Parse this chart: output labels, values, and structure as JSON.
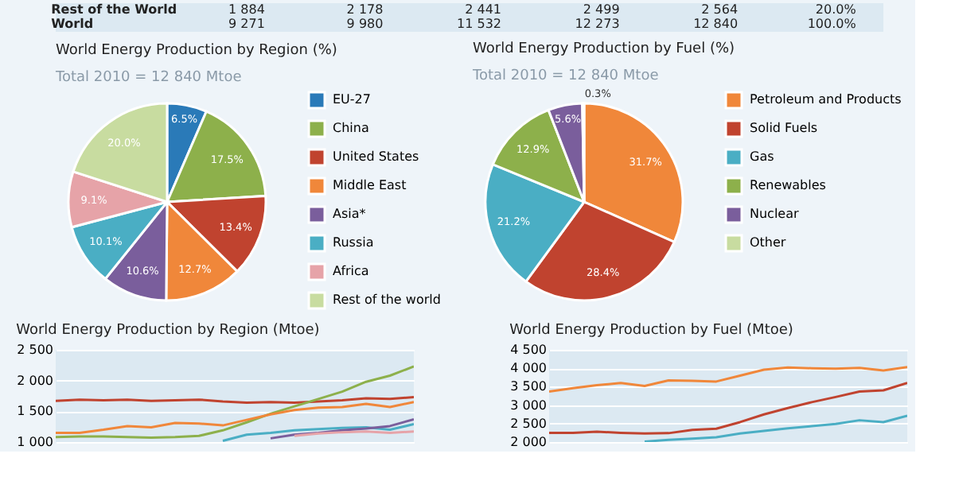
{
  "chart_data": [
    {
      "type": "other",
      "annotations": [
        "Rest of the World",
        "1 884",
        "2 178",
        "2 441",
        "2 499",
        "2 564",
        "20.0%",
        "World",
        "9 271",
        "9 980",
        "11 532",
        "12 273",
        "12 840",
        "100.0%"
      ]
    },
    {
      "type": "pie",
      "title": "World Energy Production by Region (%)",
      "subtitle": "Total 2010 = 12 840 Mtoe",
      "legend": "right",
      "categories": [
        "EU-27",
        "China",
        "United States",
        "Middle East",
        "Asia*",
        "Russia",
        "Africa",
        "Rest of the world"
      ],
      "values": [
        6.5,
        17.5,
        13.4,
        12.7,
        10.6,
        10.1,
        9.1,
        20.0
      ],
      "value_labels": [
        "6.5%",
        "17.5%",
        "13.4%",
        "12.7%",
        "10.6%",
        "10.1%",
        "9.1%",
        "20.0%"
      ],
      "colors": [
        "#2a7ab8",
        "#8db04b",
        "#c0432f",
        "#f0873a",
        "#7a5e9c",
        "#4aaec4",
        "#e6a3a8",
        "#c8dca0"
      ]
    },
    {
      "type": "pie",
      "title": "World Energy Production by Fuel (%)",
      "subtitle": "Total 2010 = 12 840 Mtoe",
      "legend": "right",
      "categories": [
        "Petroleum and Products",
        "Solid Fuels",
        "Gas",
        "Renewables",
        "Nuclear",
        "Other"
      ],
      "values": [
        31.7,
        28.4,
        21.2,
        12.9,
        5.6,
        0.3
      ],
      "value_labels": [
        "31.7%",
        "28.4%",
        "21.2%",
        "12.9%",
        "5.6%",
        "0.3%"
      ],
      "colors": [
        "#f0873a",
        "#c0432f",
        "#4aaec4",
        "#8db04b",
        "#7a5e9c",
        "#c8dca0"
      ]
    },
    {
      "type": "line",
      "title": "World Energy Production by Region (Mtoe)",
      "grid": "y",
      "tick_labels": "y",
      "legend": false,
      "categories": [
        null,
        null,
        null,
        null,
        null,
        null,
        null,
        null,
        null,
        null,
        null,
        null,
        null,
        null,
        null,
        null
      ],
      "ylim": [
        1000,
        2500
      ],
      "yticks": [
        {
          "value": 1000,
          "label": "1 000"
        },
        {
          "value": 1500,
          "label": "1 500"
        },
        {
          "value": 2000,
          "label": "2 000"
        },
        {
          "value": 2500,
          "label": "2 500"
        }
      ],
      "series": [
        {
          "color": "#c0432f",
          "values": [
            1670,
            1690,
            1680,
            1690,
            1670,
            1680,
            1690,
            1660,
            1640,
            1650,
            1640,
            1660,
            1680,
            1710,
            1700,
            1730
          ]
        },
        {
          "color": "#8db04b",
          "values": [
            1080,
            1090,
            1090,
            1080,
            1070,
            1080,
            1100,
            1190,
            1320,
            1460,
            1580,
            1700,
            1820,
            1980,
            2080,
            2230
          ]
        },
        {
          "color": "#f0873a",
          "values": [
            1150,
            1150,
            1200,
            1260,
            1240,
            1310,
            1300,
            1270,
            1360,
            1450,
            1520,
            1560,
            1570,
            1620,
            1570,
            1650
          ]
        },
        {
          "color": "#4aaec4",
          "values": [
            null,
            null,
            null,
            null,
            null,
            null,
            null,
            1020,
            1120,
            1150,
            1190,
            1210,
            1230,
            1240,
            1200,
            1290
          ]
        },
        {
          "color": "#7a5e9c",
          "values": [
            null,
            null,
            null,
            null,
            null,
            null,
            null,
            null,
            null,
            1060,
            1120,
            1150,
            1190,
            1220,
            1260,
            1370
          ]
        },
        {
          "color": "#e6a3a8",
          "values": [
            null,
            null,
            null,
            null,
            null,
            null,
            null,
            null,
            null,
            null,
            1100,
            1140,
            1160,
            1170,
            1150,
            1170
          ]
        }
      ]
    },
    {
      "type": "line",
      "title": "World Energy Production by Fuel (Mtoe)",
      "grid": "y",
      "tick_labels": "y",
      "legend": false,
      "categories": [
        null,
        null,
        null,
        null,
        null,
        null,
        null,
        null,
        null,
        null,
        null,
        null,
        null,
        null,
        null,
        null
      ],
      "ylim": [
        2000,
        4500
      ],
      "yticks": [
        {
          "value": 2000,
          "label": "2 000"
        },
        {
          "value": 2500,
          "label": "2 500"
        },
        {
          "value": 3000,
          "label": "3 000"
        },
        {
          "value": 3500,
          "label": "3 500"
        },
        {
          "value": 4000,
          "label": "4 000"
        },
        {
          "value": 4500,
          "label": "4 500"
        }
      ],
      "series": [
        {
          "color": "#f0873a",
          "values": [
            3370,
            3460,
            3540,
            3600,
            3520,
            3670,
            3660,
            3640,
            3800,
            3960,
            4020,
            4000,
            3990,
            4010,
            3940,
            4030
          ]
        },
        {
          "color": "#c0432f",
          "values": [
            2250,
            2250,
            2280,
            2250,
            2230,
            2240,
            2330,
            2360,
            2540,
            2750,
            2920,
            3080,
            3220,
            3370,
            3400,
            3600
          ]
        },
        {
          "color": "#4aaec4",
          "values": [
            null,
            null,
            null,
            null,
            2010,
            2060,
            2090,
            2130,
            2230,
            2300,
            2370,
            2430,
            2490,
            2590,
            2540,
            2710
          ]
        }
      ]
    }
  ]
}
